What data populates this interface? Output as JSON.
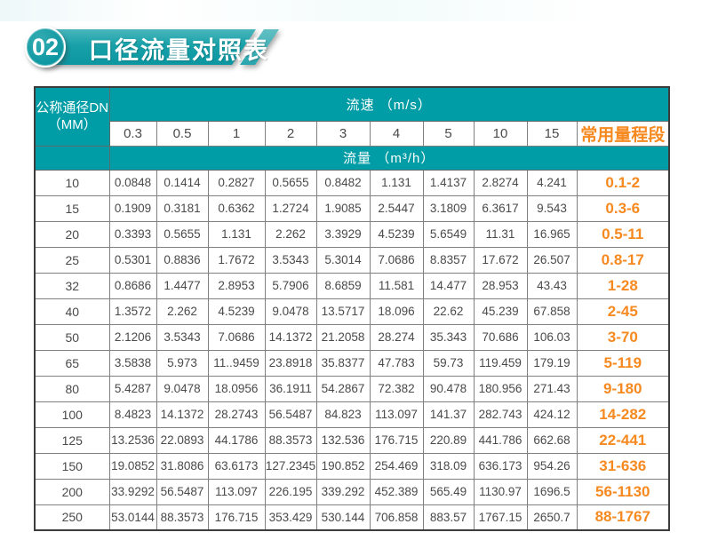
{
  "banner": {
    "badge": "02",
    "title": "口径流量对照表"
  },
  "colors": {
    "teal": "#019da6",
    "orange": "#f6891f",
    "cell_text": "#4a4a4a"
  },
  "table": {
    "corner_header_line1": "公称通径DN",
    "corner_header_line2": "（MM）",
    "velocity_group_header": "流速 （m/s）",
    "flow_group_header": "流量 （m³/h）",
    "velocity_columns": [
      "0.3",
      "0.5",
      "1",
      "2",
      "3",
      "4",
      "5",
      "10",
      "15"
    ],
    "range_header": "常用量程段",
    "rows": [
      {
        "dn": "10",
        "values": [
          "0.0848",
          "0.1414",
          "0.2827",
          "0.5655",
          "0.8482",
          "1.131",
          "1.4137",
          "2.8274",
          "4.241"
        ],
        "range": "0.1-2"
      },
      {
        "dn": "15",
        "values": [
          "0.1909",
          "0.3181",
          "0.6362",
          "1.2724",
          "1.9085",
          "2.5447",
          "3.1809",
          "6.3617",
          "9.543"
        ],
        "range": "0.3-6"
      },
      {
        "dn": "20",
        "values": [
          "0.3393",
          "0.5655",
          "1.131",
          "2.262",
          "3.3929",
          "4.5239",
          "5.6549",
          "11.31",
          "16.965"
        ],
        "range": "0.5-11"
      },
      {
        "dn": "25",
        "values": [
          "0.5301",
          "0.8836",
          "1.7672",
          "3.5343",
          "5.3014",
          "7.0686",
          "8.8357",
          "17.672",
          "26.507"
        ],
        "range": "0.8-17"
      },
      {
        "dn": "32",
        "values": [
          "0.8686",
          "1.4477",
          "2.8953",
          "5.7906",
          "8.6859",
          "11.581",
          "14.477",
          "28.953",
          "43.43"
        ],
        "range": "1-28"
      },
      {
        "dn": "40",
        "values": [
          "1.3572",
          "2.262",
          "4.5239",
          "9.0478",
          "13.5717",
          "18.096",
          "22.62",
          "45.239",
          "67.858"
        ],
        "range": "2-45"
      },
      {
        "dn": "50",
        "values": [
          "2.1206",
          "3.5343",
          "7.0686",
          "14.1372",
          "21.2058",
          "28.274",
          "35.343",
          "70.686",
          "106.03"
        ],
        "range": "3-70"
      },
      {
        "dn": "65",
        "values": [
          "3.5838",
          "5.973",
          "11..9459",
          "23.8918",
          "35.8377",
          "47.783",
          "59.73",
          "119.459",
          "179.19"
        ],
        "range": "5-119"
      },
      {
        "dn": "80",
        "values": [
          "5.4287",
          "9.0478",
          "18.0956",
          "36.1911",
          "54.2867",
          "72.382",
          "90.478",
          "180.956",
          "271.43"
        ],
        "range": "9-180"
      },
      {
        "dn": "100",
        "values": [
          "8.4823",
          "14.1372",
          "28.2743",
          "56.5487",
          "84.823",
          "113.097",
          "141.37",
          "282.743",
          "424.12"
        ],
        "range": "14-282"
      },
      {
        "dn": "125",
        "values": [
          "13.2536",
          "22.0893",
          "44.1786",
          "88.3573",
          "132.536",
          "176.715",
          "220.89",
          "441.786",
          "662.68"
        ],
        "range": "22-441"
      },
      {
        "dn": "150",
        "values": [
          "19.0852",
          "31.8086",
          "63.6173",
          "127.2345",
          "190.852",
          "254.469",
          "318.09",
          "636.173",
          "954.26"
        ],
        "range": "31-636"
      },
      {
        "dn": "200",
        "values": [
          "33.9292",
          "56.5487",
          "113.097",
          "226.195",
          "339.292",
          "452.389",
          "565.49",
          "1130.97",
          "1696.5"
        ],
        "range": "56-1130"
      },
      {
        "dn": "250",
        "values": [
          "53.0144",
          "88.3573",
          "176.715",
          "353.429",
          "530.144",
          "706.858",
          "883.57",
          "1767.15",
          "2650.7"
        ],
        "range": "88-1767"
      }
    ]
  }
}
